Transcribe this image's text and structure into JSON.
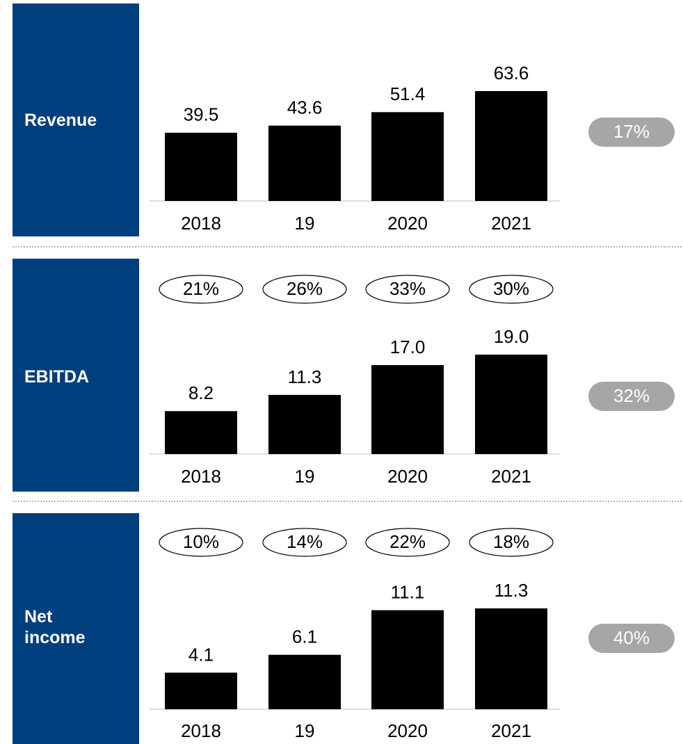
{
  "chart_data": [
    {
      "type": "bar",
      "title": "Revenue",
      "categories": [
        "2018",
        "19",
        "2020",
        "2021"
      ],
      "values": [
        39.5,
        43.6,
        51.4,
        63.6
      ],
      "color": "#000000",
      "cagr": {
        "value": 17,
        "label": "17%"
      }
    },
    {
      "type": "bar",
      "title": "EBITDA",
      "categories": [
        "2018",
        "19",
        "2020",
        "2021"
      ],
      "values": [
        8.2,
        11.3,
        17.0,
        19.0
      ],
      "value_labels": [
        "8.2",
        "11.3",
        "17.0",
        "19.0"
      ],
      "color": "#000000",
      "margins": [
        {
          "value": 21,
          "label": "21%"
        },
        {
          "value": 26,
          "label": "26%"
        },
        {
          "value": 33,
          "label": "33%"
        },
        {
          "value": 30,
          "label": "30%"
        }
      ],
      "cagr": {
        "value": 32,
        "label": "32%"
      }
    },
    {
      "type": "bar",
      "title": "Net\nincome",
      "categories": [
        "2018",
        "19",
        "2020",
        "2021"
      ],
      "values": [
        4.1,
        6.1,
        11.1,
        11.3
      ],
      "color": "#000000",
      "margins": [
        {
          "value": 10,
          "label": "10%"
        },
        {
          "value": 14,
          "label": "14%"
        },
        {
          "value": 22,
          "label": "22%"
        },
        {
          "value": 18,
          "label": "18%"
        }
      ],
      "cagr": {
        "value": 40,
        "label": "40%"
      }
    }
  ]
}
